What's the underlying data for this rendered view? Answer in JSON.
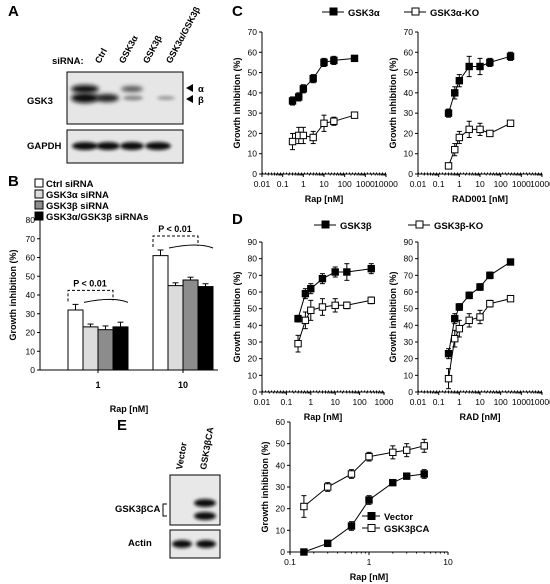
{
  "panels": {
    "A": "A",
    "B": "B",
    "C": "C",
    "D": "D",
    "E": "E"
  },
  "blotA": {
    "sirna_label": "siRNA:",
    "lanes": [
      "Ctrl",
      "GSK3α",
      "GSK3β",
      "GSK3α/GSK3β"
    ],
    "rows": [
      "GSK3",
      "GAPDH"
    ],
    "markers": [
      "α",
      "β"
    ]
  },
  "blotE": {
    "lanes": [
      "Vector",
      "GSK3βCA"
    ],
    "rows": [
      "GSK3βCA",
      "Actin"
    ]
  },
  "colors": {
    "ctrl": "#ffffff",
    "alpha": "#dcdcdc",
    "beta": "#8c8c8c",
    "double": "#000000"
  },
  "chart_data": [
    {
      "id": "B",
      "type": "bar",
      "categories": [
        "1",
        "10"
      ],
      "xlabel": "Rap [nM]",
      "ylabel": "Growth inhibition (%)",
      "ylim": [
        0,
        80
      ],
      "yticks": [
        0,
        10,
        20,
        30,
        40,
        50,
        60,
        70,
        80
      ],
      "series": [
        {
          "name": "Ctrl siRNA",
          "color": "#ffffff",
          "values": [
            32,
            61
          ],
          "errors": [
            3,
            3
          ]
        },
        {
          "name": "GSK3α siRNA",
          "color": "#dcdcdc",
          "values": [
            23,
            45
          ],
          "errors": [
            1.5,
            1.5
          ]
        },
        {
          "name": "GSK3β siRNA",
          "color": "#8c8c8c",
          "values": [
            21.5,
            48
          ],
          "errors": [
            2,
            1.5
          ]
        },
        {
          "name": "GSK3α/GSK3β siRNAs",
          "color": "#000000",
          "values": [
            23,
            44.5
          ],
          "errors": [
            2.5,
            1.5
          ]
        }
      ],
      "annotations": [
        "P < 0.01",
        "P < 0.01"
      ],
      "legend": "top-left"
    },
    {
      "id": "C1",
      "type": "line",
      "xlabel": "Rap [nM]",
      "ylabel": "Growth inhibition (%)",
      "xscale": "log",
      "xlim": [
        0.01,
        10000
      ],
      "ylim": [
        0,
        70
      ],
      "xticks": [
        "0.01",
        "0.1",
        "1",
        "10",
        "100",
        "1000",
        "10000"
      ],
      "yticks": [
        0,
        10,
        20,
        30,
        40,
        50,
        60,
        70
      ],
      "series": [
        {
          "name": "GSK3α",
          "marker": "filled",
          "x": [
            0.3,
            0.6,
            1,
            3,
            10,
            30,
            300
          ],
          "y": [
            36,
            38,
            42,
            47,
            55,
            56,
            57
          ],
          "errors": [
            2,
            2,
            2,
            2,
            2,
            2,
            1
          ]
        },
        {
          "name": "GSK3α-KO",
          "marker": "open",
          "x": [
            0.3,
            0.6,
            1,
            3,
            10,
            30,
            300
          ],
          "y": [
            16,
            19,
            19,
            18,
            25,
            26,
            29
          ],
          "errors": [
            4,
            4,
            4,
            3,
            4,
            2,
            1
          ]
        }
      ],
      "legend": "top-center"
    },
    {
      "id": "C2",
      "type": "line",
      "xlabel": "RAD001 [nM]",
      "ylabel": "Growth inhibition (%)",
      "xscale": "log",
      "xlim": [
        0.01,
        10000
      ],
      "ylim": [
        0,
        70
      ],
      "xticks": [
        "0.01",
        "0.1",
        "1",
        "10",
        "100",
        "1000",
        "10000"
      ],
      "yticks": [
        0,
        10,
        20,
        30,
        40,
        50,
        60,
        70
      ],
      "series": [
        {
          "name": "GSK3α",
          "marker": "filled",
          "x": [
            0.3,
            0.6,
            1,
            3,
            10,
            30,
            300
          ],
          "y": [
            30,
            40,
            46,
            53,
            53,
            55,
            58
          ],
          "errors": [
            2,
            3,
            3,
            5,
            4,
            2,
            2
          ]
        },
        {
          "name": "GSK3α-KO",
          "marker": "open",
          "x": [
            0.3,
            0.6,
            1,
            3,
            10,
            30,
            300
          ],
          "y": [
            4,
            12,
            18,
            22,
            22,
            20,
            25
          ],
          "errors": [
            1,
            3,
            3,
            4,
            3,
            1,
            1
          ]
        }
      ]
    },
    {
      "id": "D1",
      "type": "line",
      "xlabel": "Rap [nM]",
      "ylabel": "Growth inhibition (%)",
      "xscale": "log",
      "xlim": [
        0.01,
        1000
      ],
      "ylim": [
        0,
        90
      ],
      "xticks": [
        "0.01",
        "0.1",
        "1",
        "10",
        "100",
        "1000"
      ],
      "yticks": [
        0,
        10,
        20,
        30,
        40,
        50,
        60,
        70,
        80,
        90
      ],
      "series": [
        {
          "name": "GSK3β",
          "marker": "filled",
          "x": [
            0.3,
            0.6,
            1,
            3,
            10,
            30,
            300
          ],
          "y": [
            44,
            59,
            62,
            68,
            72,
            72,
            74
          ],
          "errors": [
            2,
            3,
            3,
            3,
            3,
            5,
            3
          ]
        },
        {
          "name": "GSK3β-KO",
          "marker": "open",
          "x": [
            0.3,
            0.6,
            1,
            3,
            10,
            30,
            300
          ],
          "y": [
            29,
            43,
            49,
            51,
            52,
            52,
            55
          ],
          "errors": [
            5,
            5,
            6,
            5,
            4,
            2,
            2
          ]
        }
      ],
      "legend": "top-center"
    },
    {
      "id": "D2",
      "type": "line",
      "xlabel": "RAD [nM]",
      "ylabel": "Growth inhibition (%)",
      "xscale": "log",
      "xlim": [
        0.01,
        10000
      ],
      "ylim": [
        0,
        90
      ],
      "xticks": [
        "0.01",
        "0.1",
        "1",
        "10",
        "100",
        "1000",
        "10000"
      ],
      "yticks": [
        0,
        10,
        20,
        30,
        40,
        50,
        60,
        70,
        80,
        90
      ],
      "series": [
        {
          "name": "GSK3β",
          "marker": "filled",
          "x": [
            0.3,
            0.6,
            1,
            3,
            10,
            30,
            300
          ],
          "y": [
            23,
            44,
            51,
            58,
            63,
            70,
            78
          ],
          "errors": [
            3,
            3,
            2,
            2,
            2,
            2,
            1
          ]
        },
        {
          "name": "GSK3β-KO",
          "marker": "open",
          "x": [
            0.3,
            0.6,
            1,
            3,
            10,
            30,
            300
          ],
          "y": [
            8,
            32,
            38,
            43,
            45,
            53,
            56
          ],
          "errors": [
            6,
            5,
            5,
            4,
            4,
            2,
            1
          ]
        }
      ]
    },
    {
      "id": "E",
      "type": "line",
      "xlabel": "Rap [nM]",
      "ylabel": "Growth inhibition (%)",
      "xscale": "log",
      "xlim": [
        0.1,
        10
      ],
      "ylim": [
        0,
        60
      ],
      "xticks": [
        "0.1",
        "1",
        "10"
      ],
      "yticks": [
        0,
        10,
        20,
        30,
        40,
        50,
        60
      ],
      "series": [
        {
          "name": "Vector",
          "marker": "filled",
          "x": [
            0.15,
            0.3,
            0.6,
            1,
            2,
            3,
            5
          ],
          "y": [
            0,
            4,
            12,
            24,
            32,
            35,
            36
          ],
          "errors": [
            0,
            0,
            2,
            2,
            1,
            1,
            2
          ]
        },
        {
          "name": "GSK3βCA",
          "marker": "open",
          "x": [
            0.15,
            0.3,
            0.6,
            1,
            2,
            3,
            5
          ],
          "y": [
            21,
            30,
            36,
            44,
            46,
            47,
            49
          ],
          "errors": [
            5,
            2,
            2,
            2,
            3,
            3,
            3
          ]
        }
      ],
      "legend": "bottom-right"
    }
  ]
}
